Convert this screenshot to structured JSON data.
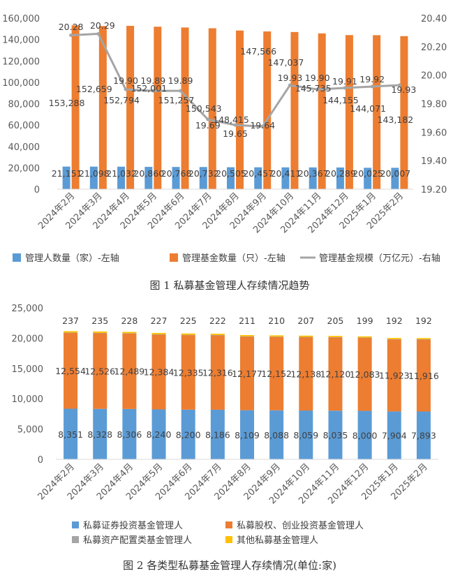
{
  "colors": {
    "blue": "#5B9BD5",
    "orange": "#ED7D31",
    "gray": "#A5A5A5",
    "yellow": "#FFC000",
    "axis_text": "#595959",
    "grid": "#D9D9D9"
  },
  "chart_data": [
    {
      "type": "bar",
      "caption": "图 1  私募基金管理人存续情况趋势",
      "categories": [
        "2024年2月",
        "2024年3月",
        "2024年4月",
        "2024年5月",
        "2024年6月",
        "2024年7月",
        "2024年8月",
        "2024年9月",
        "2024年10月",
        "2024年11月",
        "2024年12月",
        "2025年1月",
        "2025年2月"
      ],
      "series": [
        {
          "name": "管理人数量（家）-左轴",
          "type": "bar",
          "axis": "left",
          "color": "#5B9BD5",
          "values": [
            21151,
            21098,
            21032,
            20860,
            20768,
            20732,
            20505,
            20457,
            20411,
            20367,
            20289,
            20025,
            20007
          ],
          "labels": [
            "21,151",
            "21,098",
            "21,032",
            "20,860",
            "20,768",
            "20,732",
            "20,505",
            "20,457",
            "20,411",
            "20,367",
            "20,289",
            "20,025",
            "20,007"
          ]
        },
        {
          "name": "管理基金数量（只）-左轴",
          "type": "bar",
          "axis": "left",
          "color": "#ED7D31",
          "values": [
            153288,
            152659,
            152794,
            152001,
            151257,
            150543,
            148415,
            147566,
            147037,
            145735,
            144155,
            144071,
            143182
          ],
          "labels": [
            "153,288",
            "152,659",
            "152,794",
            "152,001",
            "151,257",
            "150,543",
            "148,415",
            "147,566",
            "147,037",
            "145,735",
            "144,155",
            "144,071",
            "143,182"
          ]
        },
        {
          "name": "管理基金规模（万亿元）-右轴",
          "type": "line",
          "axis": "right",
          "color": "#A5A5A5",
          "values": [
            20.28,
            20.29,
            19.9,
            19.89,
            19.89,
            19.69,
            19.65,
            19.64,
            19.93,
            19.9,
            19.91,
            19.92,
            19.93
          ],
          "labels": [
            "20.28",
            "20.29",
            "19.90",
            "19.89",
            "19.89",
            "19.69",
            "19.65",
            "19.64",
            "19.93",
            "19.90",
            "19.91",
            "19.92",
            "19.93"
          ]
        }
      ],
      "y_left": {
        "ylim": [
          0,
          160000
        ],
        "ticks": [
          "0",
          "20,000",
          "40,000",
          "60,000",
          "80,000",
          "100,000",
          "120,000",
          "140,000",
          "160,000"
        ]
      },
      "y_right": {
        "ylim": [
          19.2,
          20.4
        ],
        "ticks": [
          "19.20",
          "19.40",
          "19.60",
          "19.80",
          "20.00",
          "20.20",
          "20.40"
        ]
      },
      "grid": false,
      "legend": "bottom"
    },
    {
      "type": "bar",
      "stacked": true,
      "caption": "图 2  各类型私募基金管理人存续情况(单位:家)",
      "categories": [
        "2024年2月",
        "2024年3月",
        "2024年4月",
        "2024年5月",
        "2024年6月",
        "2024年7月",
        "2024年8月",
        "2024年9月",
        "2024年10月",
        "2024年11月",
        "2024年12月",
        "2025年1月",
        "2025年2月"
      ],
      "series": [
        {
          "name": "私募证券投资基金管理人",
          "color": "#5B9BD5",
          "values": [
            8351,
            8328,
            8306,
            8240,
            8200,
            8186,
            8109,
            8088,
            8059,
            8035,
            8000,
            7904,
            7893
          ],
          "labels": [
            "8,351",
            "8,328",
            "8,306",
            "8,240",
            "8,200",
            "8,186",
            "8,109",
            "8,088",
            "8,059",
            "8,035",
            "8,000",
            "7,904",
            "7,893"
          ]
        },
        {
          "name": "私募股权、创业投资基金管理人",
          "color": "#ED7D31",
          "values": [
            12554,
            12526,
            12489,
            12384,
            12335,
            12316,
            12177,
            12152,
            12138,
            12120,
            12083,
            11923,
            11916
          ],
          "labels": [
            "12,554",
            "12,526",
            "12,489",
            "12,384",
            "12,335",
            "12,316",
            "12,177",
            "12,152",
            "12,138",
            "12,120",
            "12,083",
            "11,923",
            "11,916"
          ]
        },
        {
          "name": "私募资产配置类基金管理人",
          "color": "#A5A5A5",
          "values": [
            9,
            9,
            9,
            9,
            9,
            9,
            9,
            9,
            9,
            9,
            9,
            9,
            9
          ],
          "labels": []
        },
        {
          "name": "其他私募基金管理人",
          "color": "#FFC000",
          "values": [
            237,
            235,
            228,
            227,
            225,
            222,
            211,
            210,
            207,
            205,
            199,
            192,
            192
          ],
          "labels": [
            "237",
            "235",
            "228",
            "227",
            "225",
            "222",
            "211",
            "210",
            "207",
            "205",
            "199",
            "192",
            "192"
          ]
        }
      ],
      "y": {
        "ylim": [
          0,
          25000
        ],
        "ticks": [
          "0",
          "5,000",
          "10,000",
          "15,000",
          "20,000",
          "25,000"
        ]
      },
      "grid": false,
      "legend": "bottom"
    }
  ]
}
